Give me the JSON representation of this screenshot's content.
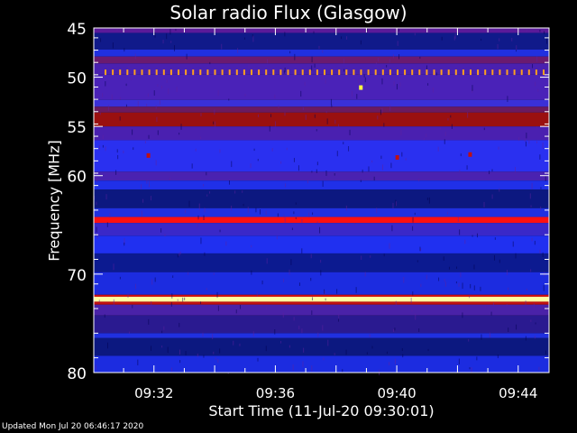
{
  "chart_data": {
    "type": "heatmap",
    "title": "Solar radio Flux (Glasgow)",
    "xlabel": "Start Time (11-Jul-20 09:30:01)",
    "ylabel": "Frequency [MHz]",
    "x_start": "09:30:01",
    "x_end": "09:45:00",
    "xlim_minutes": [
      0,
      15
    ],
    "ylim": [
      45,
      80
    ],
    "y_inverted": true,
    "x_ticks": [
      "09:32",
      "09:36",
      "09:40",
      "09:44"
    ],
    "y_ticks": [
      45,
      50,
      55,
      60,
      70,
      80
    ],
    "bands": [
      {
        "from": 45.0,
        "to": 45.5,
        "color": "#5a1a9a"
      },
      {
        "from": 45.5,
        "to": 47.2,
        "color": "#101a8a"
      },
      {
        "from": 47.2,
        "to": 47.9,
        "color": "#2030e0"
      },
      {
        "from": 47.9,
        "to": 48.6,
        "color": "#6a1a70"
      },
      {
        "from": 48.6,
        "to": 49.7,
        "color": "#4a20b0"
      },
      {
        "from": 49.7,
        "to": 52.3,
        "color": "#4a22b8"
      },
      {
        "from": 52.3,
        "to": 53.0,
        "color": "#3a30d8"
      },
      {
        "from": 53.0,
        "to": 53.6,
        "color": "#6a1a60"
      },
      {
        "from": 53.6,
        "to": 55.0,
        "color": "#9a1010"
      },
      {
        "from": 55.0,
        "to": 56.4,
        "color": "#4a20b0"
      },
      {
        "from": 56.4,
        "to": 59.6,
        "color": "#2a30f0"
      },
      {
        "from": 59.6,
        "to": 60.5,
        "color": "#4a22b0"
      },
      {
        "from": 60.5,
        "to": 61.4,
        "color": "#2030e8"
      },
      {
        "from": 61.4,
        "to": 63.3,
        "color": "#0c1880"
      },
      {
        "from": 63.3,
        "to": 64.2,
        "color": "#2030e0"
      },
      {
        "from": 64.2,
        "to": 64.8,
        "color": "#ff1010"
      },
      {
        "from": 64.8,
        "to": 66.1,
        "color": "#3a28c8"
      },
      {
        "from": 66.1,
        "to": 67.9,
        "color": "#2030f0"
      },
      {
        "from": 67.9,
        "to": 69.8,
        "color": "#0c1a90"
      },
      {
        "from": 69.8,
        "to": 72.1,
        "color": "#1c2ce0"
      },
      {
        "from": 72.1,
        "to": 72.3,
        "color": "#d01010"
      },
      {
        "from": 72.3,
        "to": 72.8,
        "color": "#ffffa0"
      },
      {
        "from": 72.8,
        "to": 73.1,
        "color": "#c01010"
      },
      {
        "from": 73.1,
        "to": 74.2,
        "color": "#4a22a8"
      },
      {
        "from": 74.2,
        "to": 76.0,
        "color": "#2a1a90"
      },
      {
        "from": 76.0,
        "to": 76.5,
        "color": "#2030e0"
      },
      {
        "from": 76.5,
        "to": 78.3,
        "color": "#0c1880"
      },
      {
        "from": 78.3,
        "to": 80.0,
        "color": "#1c2ce0"
      }
    ],
    "features": [
      {
        "type": "dotted-line",
        "freq": 49.5,
        "color": "#ffa020"
      },
      {
        "type": "spot",
        "time_min": 8.8,
        "freq": 51.1,
        "color": "#ffff40"
      },
      {
        "type": "spot",
        "time_min": 1.8,
        "freq": 58.0,
        "color": "#c01010"
      },
      {
        "type": "spot",
        "time_min": 10.0,
        "freq": 58.2,
        "color": "#c01010"
      },
      {
        "type": "spot",
        "time_min": 12.4,
        "freq": 57.9,
        "color": "#c01010"
      }
    ]
  },
  "footer": {
    "updated": "Updated Mon Jul 20 06:46:17 2020"
  }
}
